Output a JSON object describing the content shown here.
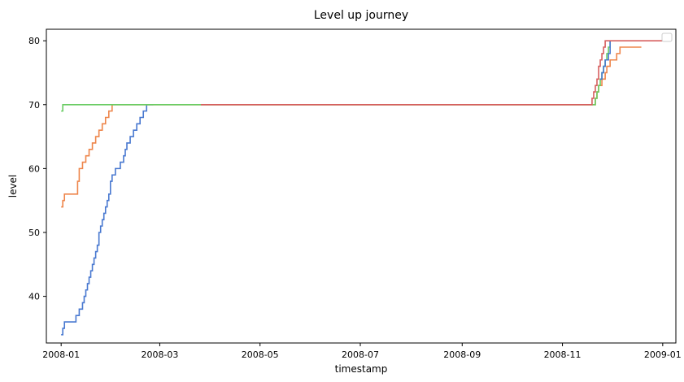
{
  "chart_data": {
    "type": "line",
    "title": "Level up journey",
    "xlabel": "timestamp",
    "ylabel": "level",
    "x_is_date": true,
    "xlim": [
      "2007-12-23",
      "2009-01-09"
    ],
    "ylim": [
      32.7,
      81.8
    ],
    "xticks": [
      {
        "value": "2008-01-01",
        "label": "2008-01"
      },
      {
        "value": "2008-03-01",
        "label": "2008-03"
      },
      {
        "value": "2008-05-01",
        "label": "2008-05"
      },
      {
        "value": "2008-07-01",
        "label": "2008-07"
      },
      {
        "value": "2008-09-01",
        "label": "2008-09"
      },
      {
        "value": "2008-11-01",
        "label": "2008-11"
      },
      {
        "value": "2009-01-01",
        "label": "2009-01"
      }
    ],
    "yticks": [
      40,
      50,
      60,
      70,
      80
    ],
    "grid": false,
    "legend": {
      "placement": "top-right",
      "entries": []
    },
    "step": "post",
    "series": [
      {
        "color": "#4878d0",
        "x": [
          "2008-01-01",
          "2008-01-02",
          "2008-01-03",
          "2008-01-09",
          "2008-01-10",
          "2008-01-12",
          "2008-01-13",
          "2008-01-14",
          "2008-01-15",
          "2008-01-16",
          "2008-01-17",
          "2008-01-18",
          "2008-01-19",
          "2008-01-20",
          "2008-01-21",
          "2008-01-22",
          "2008-01-23",
          "2008-01-24",
          "2008-01-25",
          "2008-01-26",
          "2008-01-27",
          "2008-01-28",
          "2008-01-29",
          "2008-01-30",
          "2008-01-31",
          "2008-02-01",
          "2008-02-03",
          "2008-02-06",
          "2008-02-07",
          "2008-02-08",
          "2008-02-09",
          "2008-02-10",
          "2008-02-12",
          "2008-02-14",
          "2008-02-16",
          "2008-02-18",
          "2008-02-20",
          "2008-02-22",
          "2008-02-23",
          "2008-02-24",
          "2008-02-25",
          "2008-02-26"
        ],
        "y": [
          34,
          35,
          36,
          36,
          37,
          38,
          38,
          39,
          40,
          41,
          42,
          43,
          44,
          45,
          46,
          47,
          48,
          50,
          51,
          52,
          53,
          54,
          55,
          56,
          58,
          59,
          60,
          61,
          61,
          62,
          63,
          64,
          65,
          66,
          67,
          68,
          69,
          70,
          70,
          70,
          70,
          70
        ]
      },
      {
        "color": "#ee854a",
        "x": [
          "2008-01-01",
          "2008-01-02",
          "2008-01-03",
          "2008-01-10",
          "2008-01-11",
          "2008-01-12",
          "2008-01-14",
          "2008-01-16",
          "2008-01-18",
          "2008-01-20",
          "2008-01-22",
          "2008-01-24",
          "2008-01-26",
          "2008-01-28",
          "2008-01-30",
          "2008-02-01",
          "2008-02-02",
          "2008-11-20",
          "2008-11-21",
          "2008-11-22",
          "2008-11-23",
          "2008-11-24",
          "2008-11-25",
          "2008-11-26",
          "2008-11-27",
          "2008-11-28",
          "2008-11-30",
          "2008-12-02",
          "2008-12-04",
          "2008-12-06",
          "2008-12-08",
          "2008-12-10",
          "2008-12-12",
          "2008-12-19"
        ],
        "y": [
          54,
          55,
          56,
          56,
          58,
          60,
          61,
          62,
          63,
          64,
          65,
          66,
          67,
          68,
          69,
          70,
          70,
          70,
          71,
          72,
          73,
          73,
          74,
          74,
          75,
          76,
          77,
          77,
          78,
          79,
          79,
          79,
          79,
          79
        ]
      },
      {
        "color": "#6acc64",
        "x": [
          "2008-01-01",
          "2008-01-02",
          "2008-03-26",
          "2008-11-20",
          "2008-11-21",
          "2008-11-22",
          "2008-11-23",
          "2008-11-24",
          "2008-11-25",
          "2008-11-26",
          "2008-11-27",
          "2008-11-28",
          "2008-11-29",
          "2008-11-30"
        ],
        "y": [
          69,
          70,
          70,
          70,
          71,
          72,
          73,
          74,
          75,
          76,
          77,
          78,
          79,
          80
        ]
      },
      {
        "color": "#4878d0",
        "x": [
          "2008-11-24",
          "2008-11-25",
          "2008-11-26",
          "2008-11-27",
          "2008-11-28",
          "2008-11-29",
          "2008-11-30"
        ],
        "y": [
          74,
          75,
          76,
          77,
          77,
          78,
          80
        ]
      },
      {
        "color": "#d65f5f",
        "x": [
          "2008-03-26",
          "2008-11-18",
          "2008-11-19",
          "2008-11-20",
          "2008-11-21",
          "2008-11-22",
          "2008-11-23",
          "2008-11-24",
          "2008-11-25",
          "2008-11-26",
          "2008-11-27",
          "2009-01-01"
        ],
        "y": [
          70,
          70,
          71,
          72,
          73,
          74,
          76,
          77,
          78,
          79,
          80,
          80
        ]
      }
    ]
  }
}
